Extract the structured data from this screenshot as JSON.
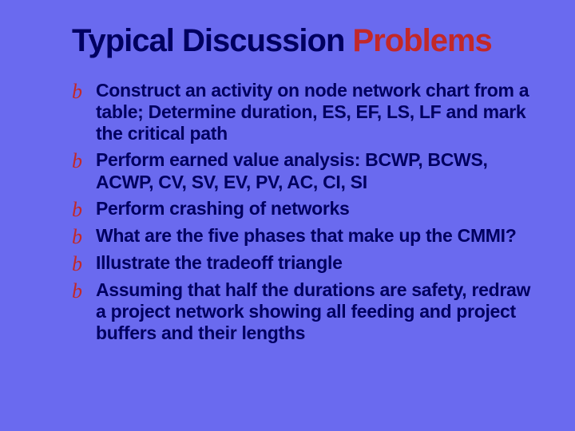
{
  "colors": {
    "background": "#6a6aef",
    "title_main": "#000060",
    "title_accent": "#c22828",
    "bullet_icon": "#c22828",
    "bullet_text": "#000060"
  },
  "typography": {
    "title_fontsize": 40,
    "title_weight": 900,
    "bullet_fontsize": 23,
    "bullet_weight": 700,
    "bullet_icon_fontsize": 26
  },
  "title": {
    "main": "Typical Discussion ",
    "accent": "Problems"
  },
  "bullet_glyph": "b",
  "bullets": [
    "Construct an activity on node network chart from a table; Determine duration, ES, EF, LS, LF and mark the critical path",
    "Perform earned value analysis: BCWP, BCWS, ACWP, CV, SV, EV, PV, AC, CI, SI",
    "Perform crashing of networks",
    "What are the five phases that make up the CMMI?",
    "Illustrate the tradeoff triangle",
    "Assuming that half the durations are safety, redraw a project network showing all feeding and project buffers and their lengths"
  ]
}
